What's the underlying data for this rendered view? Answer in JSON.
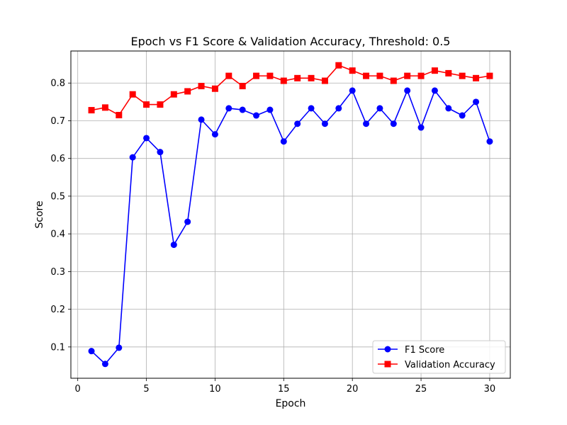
{
  "chart_data": {
    "type": "line",
    "title": "Epoch vs F1 Score & Validation Accuracy, Threshold: 0.5",
    "xlabel": "Epoch",
    "ylabel": "Score",
    "xlim": [
      -0.5,
      31.5
    ],
    "ylim": [
      0.017,
      0.885
    ],
    "x_ticks": [
      0,
      5,
      10,
      15,
      20,
      25,
      30
    ],
    "y_ticks": [
      0.1,
      0.2,
      0.3,
      0.4,
      0.5,
      0.6,
      0.7,
      0.8
    ],
    "grid": true,
    "legend_position": "lower-right",
    "x": [
      1,
      2,
      3,
      4,
      5,
      6,
      7,
      8,
      9,
      10,
      11,
      12,
      13,
      14,
      15,
      16,
      17,
      18,
      19,
      20,
      21,
      22,
      23,
      24,
      25,
      26,
      27,
      28,
      29,
      30
    ],
    "series": [
      {
        "name": "F1 Score",
        "color": "#0000ff",
        "marker": "circle",
        "values": [
          0.089,
          0.055,
          0.098,
          0.603,
          0.654,
          0.617,
          0.371,
          0.432,
          0.703,
          0.664,
          0.733,
          0.729,
          0.714,
          0.729,
          0.645,
          0.692,
          0.733,
          0.692,
          0.733,
          0.78,
          0.692,
          0.733,
          0.692,
          0.78,
          0.682,
          0.78,
          0.733,
          0.714,
          0.75,
          0.645
        ]
      },
      {
        "name": "Validation Accuracy",
        "color": "#ff0000",
        "marker": "square",
        "values": [
          0.728,
          0.735,
          0.715,
          0.77,
          0.743,
          0.743,
          0.77,
          0.778,
          0.792,
          0.785,
          0.819,
          0.792,
          0.819,
          0.819,
          0.806,
          0.813,
          0.813,
          0.806,
          0.847,
          0.833,
          0.819,
          0.819,
          0.806,
          0.819,
          0.819,
          0.833,
          0.826,
          0.819,
          0.813,
          0.819
        ]
      }
    ]
  }
}
